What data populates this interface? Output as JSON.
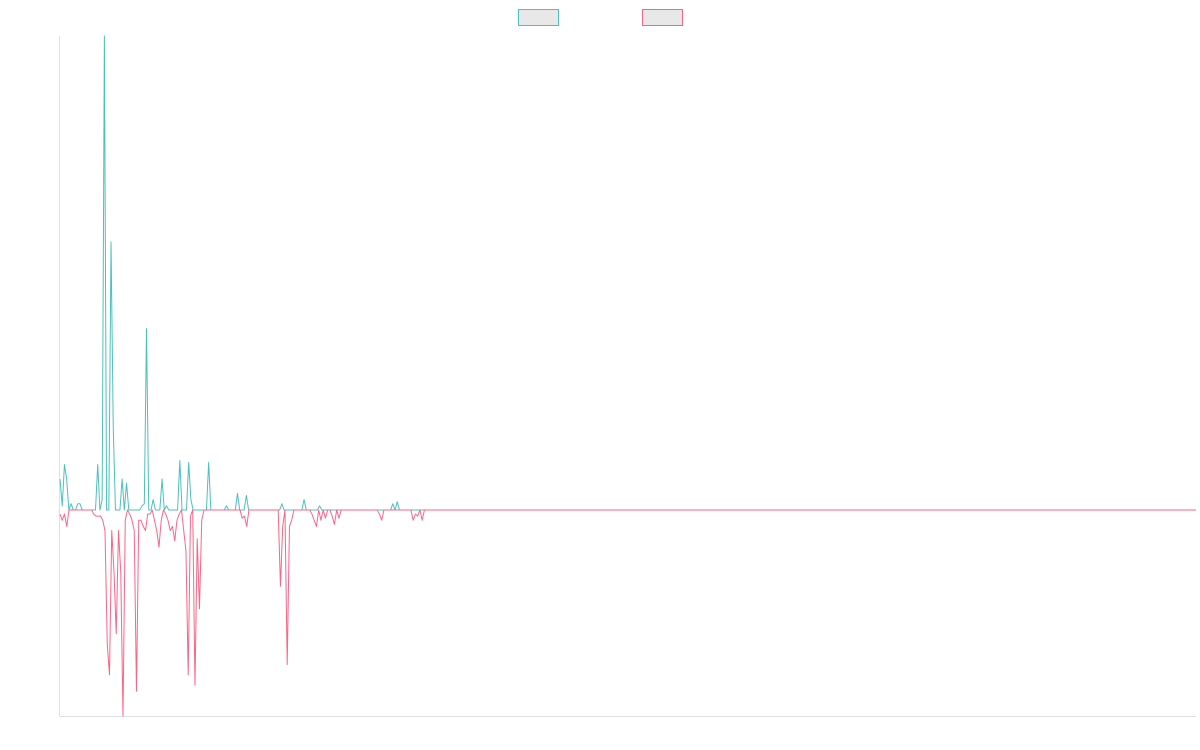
{
  "chart_data": {
    "type": "line",
    "title": "",
    "xlabel": "",
    "ylabel": "",
    "grid": false,
    "legend_position": "top-center",
    "ylim": [
      -100,
      230
    ],
    "series": [
      {
        "color": "#4bc0c0",
        "fill": "#e8e8e8",
        "values": [
          15,
          2,
          22,
          15,
          0,
          3,
          0,
          0,
          3,
          3,
          0,
          0,
          0,
          0,
          0,
          0,
          0,
          22,
          0,
          5,
          230,
          0,
          0,
          130,
          40,
          0,
          0,
          0,
          15,
          0,
          13,
          0,
          0,
          0,
          0,
          0,
          0,
          2,
          3,
          88,
          0,
          0,
          5,
          0,
          0,
          0,
          15,
          0,
          2,
          0,
          0,
          0,
          0,
          0,
          24,
          0,
          0,
          0,
          23,
          5,
          0,
          0,
          0,
          0,
          0,
          0,
          0,
          23,
          0,
          0,
          0,
          0,
          0,
          0,
          0,
          2,
          0,
          0,
          0,
          0,
          8,
          0,
          0,
          0,
          7,
          0,
          0,
          0,
          0,
          0,
          0,
          0,
          0,
          0,
          0,
          0,
          0,
          0,
          0,
          0,
          3,
          0,
          0,
          0,
          0,
          0,
          0,
          0,
          0,
          0,
          5,
          0,
          0,
          0,
          0,
          0,
          0,
          2,
          0,
          0,
          0,
          0,
          0,
          0,
          0,
          0,
          0,
          0,
          0,
          0,
          0,
          0,
          0,
          0,
          0,
          0,
          0,
          0,
          0,
          0,
          0,
          0,
          0,
          0,
          0,
          0,
          0,
          0,
          0,
          0,
          3,
          0,
          4,
          0,
          0,
          0,
          0,
          0,
          0,
          0,
          0,
          0,
          0,
          0,
          0,
          0,
          0,
          0,
          0,
          0,
          0,
          0,
          0,
          0,
          0,
          0,
          0,
          0,
          0,
          0,
          0,
          0,
          0,
          0,
          0,
          0,
          0,
          0,
          0,
          0,
          0,
          0,
          0,
          0,
          0,
          0,
          0,
          0,
          0,
          0,
          0,
          0,
          0,
          0,
          0,
          0,
          0,
          0,
          0,
          0,
          0,
          0,
          0,
          0,
          0,
          0,
          0,
          0,
          0,
          0,
          0,
          0,
          0,
          0,
          0,
          0,
          0,
          0,
          0,
          0,
          0,
          0,
          0,
          0,
          0,
          0,
          0,
          0,
          0,
          0,
          0,
          0,
          0,
          0,
          0,
          0,
          0,
          0,
          0,
          0,
          0,
          0,
          0,
          0,
          0,
          0,
          0,
          0,
          0,
          0,
          0,
          0,
          0,
          0,
          0,
          0,
          0,
          0,
          0,
          0,
          0,
          0,
          0,
          0,
          0,
          0,
          0,
          0,
          0,
          0,
          0,
          0,
          0,
          0,
          0,
          0,
          0,
          0,
          0,
          0,
          0,
          0,
          0,
          0,
          0,
          0,
          0,
          0,
          0,
          0,
          0,
          0,
          0,
          0,
          0,
          0,
          0,
          0,
          0,
          0,
          0,
          0,
          0,
          0,
          0,
          0,
          0,
          0,
          0,
          0,
          0,
          0,
          0,
          0,
          0,
          0,
          0,
          0,
          0,
          0,
          0,
          0,
          0,
          0,
          0,
          0,
          0,
          0,
          0,
          0,
          0,
          0,
          0,
          0,
          0,
          0,
          0,
          0,
          0,
          0,
          0,
          0,
          0,
          0,
          0,
          0,
          0,
          0,
          0,
          0,
          0,
          0,
          0,
          0,
          0,
          0,
          0,
          0,
          0,
          0,
          0,
          0,
          0,
          0,
          0,
          0,
          0,
          0,
          0,
          0,
          0,
          0,
          0,
          0,
          0,
          0,
          0,
          0,
          0,
          0,
          0,
          0,
          0,
          0,
          0,
          0,
          0,
          0,
          0,
          0,
          0,
          0,
          0,
          0,
          0,
          0,
          0,
          0,
          0,
          0,
          0,
          0,
          0,
          0,
          0,
          0,
          0,
          0,
          0,
          0,
          0,
          0,
          0,
          0,
          0,
          0,
          0,
          0,
          0,
          0,
          0,
          0,
          0,
          0,
          0,
          0,
          0,
          0,
          0,
          0,
          0,
          0,
          0,
          0,
          0,
          0,
          0,
          0,
          0,
          0,
          0,
          0,
          0,
          0,
          0,
          0,
          0,
          0,
          0,
          0,
          0,
          0,
          0,
          0,
          0,
          0,
          0,
          0,
          0,
          0,
          0,
          0,
          0,
          0,
          0,
          0,
          0,
          0,
          0,
          0,
          0,
          0,
          0,
          0,
          0,
          0,
          0,
          0,
          0,
          0,
          0,
          0,
          0,
          0,
          0,
          0,
          0,
          0,
          0,
          0,
          0,
          0,
          0,
          0,
          0,
          0,
          0,
          0,
          0,
          0,
          0,
          0,
          0
        ]
      },
      {
        "color": "#ff6384",
        "fill": "#e8e8e8",
        "values": [
          -2,
          -5,
          -2,
          -8,
          0,
          0,
          0,
          0,
          0,
          0,
          0,
          0,
          0,
          0,
          0,
          -2,
          -3,
          -3,
          -3,
          -5,
          -10,
          -65,
          -80,
          -10,
          -30,
          -60,
          -10,
          -30,
          -100,
          -5,
          0,
          -2,
          -5,
          -10,
          -88,
          -5,
          -5,
          -8,
          -10,
          -2,
          -2,
          0,
          -5,
          -10,
          -18,
          -5,
          0,
          -2,
          -5,
          -10,
          -8,
          -15,
          -5,
          -2,
          0,
          -10,
          -20,
          -80,
          -3,
          0,
          -85,
          -14,
          -48,
          -5,
          0,
          0,
          0,
          0,
          0,
          0,
          0,
          0,
          0,
          0,
          0,
          0,
          0,
          0,
          0,
          0,
          0,
          -4,
          -3,
          -8,
          0,
          0,
          0,
          0,
          0,
          0,
          0,
          0,
          0,
          0,
          0,
          0,
          0,
          0,
          -37,
          -8,
          0,
          -75,
          -8,
          -5,
          0,
          0,
          0,
          0,
          0,
          0,
          0,
          0,
          -2,
          -5,
          -8,
          0,
          -5,
          0,
          -4,
          0,
          0,
          -3,
          -7,
          0,
          -4,
          0,
          0,
          0,
          0,
          0,
          0,
          0,
          0,
          0,
          0,
          0,
          0,
          0,
          0,
          0,
          0,
          0,
          -2,
          -5,
          0,
          0,
          0,
          0,
          0,
          0,
          0,
          0,
          0,
          0,
          0,
          0,
          0,
          -5,
          -2,
          -3,
          0,
          -5,
          0,
          0,
          0,
          0,
          0,
          0,
          0,
          0,
          0,
          0,
          0,
          0,
          0,
          0,
          0,
          0,
          0,
          0,
          0,
          0,
          0,
          0,
          0,
          0,
          0,
          0,
          0,
          0,
          0,
          0,
          0,
          0,
          0,
          0,
          0,
          0,
          0,
          0,
          0,
          0,
          0,
          0,
          0,
          0,
          0,
          0,
          0,
          0,
          0,
          0,
          0,
          0,
          0,
          0,
          0,
          0,
          0,
          0,
          0,
          0,
          0,
          0,
          0,
          0,
          0,
          0,
          0,
          0,
          0,
          0,
          0,
          0,
          0,
          0,
          0,
          0,
          0,
          0,
          0,
          0,
          0,
          0,
          0,
          0,
          0,
          0,
          0,
          0,
          0,
          0,
          0,
          0,
          0,
          0,
          0,
          0,
          0,
          0,
          0,
          0,
          0,
          0,
          0,
          0,
          0,
          0,
          0,
          0,
          0,
          0,
          0,
          0,
          0,
          0,
          0,
          0,
          0,
          0,
          0,
          0,
          0,
          0,
          0,
          0,
          0,
          0,
          0,
          0,
          0,
          0,
          0,
          0,
          0,
          0,
          0,
          0,
          0,
          0,
          0,
          0,
          0,
          0,
          0,
          0,
          0,
          0,
          0,
          0,
          0,
          0,
          0,
          0,
          0,
          0,
          0,
          0,
          0,
          0,
          0,
          0,
          0,
          0,
          0,
          0,
          0,
          0,
          0,
          0,
          0,
          0,
          0,
          0,
          0,
          0,
          0,
          0,
          0,
          0,
          0,
          0,
          0,
          0,
          0,
          0,
          0,
          0,
          0,
          0,
          0,
          0,
          0,
          0,
          0,
          0,
          0,
          0,
          0,
          0,
          0,
          0,
          0,
          0,
          0,
          0,
          0,
          0,
          0,
          0,
          0,
          0,
          0,
          0,
          0,
          0,
          0,
          0,
          0,
          0,
          0,
          0,
          0,
          0,
          0,
          0,
          0,
          0,
          0,
          0,
          0,
          0,
          0,
          0,
          0,
          0,
          0,
          0,
          0,
          0,
          0,
          0,
          0,
          0,
          0,
          0,
          0,
          0,
          0,
          0,
          0,
          0,
          0,
          0,
          0,
          0,
          0,
          0,
          0,
          0,
          0,
          0,
          0,
          0,
          0,
          0,
          0,
          0,
          0,
          0,
          0,
          0,
          0,
          0,
          0,
          0,
          0,
          0,
          0,
          0,
          0,
          0,
          0,
          0,
          0,
          0,
          0,
          0,
          0,
          0,
          0,
          0,
          0,
          0,
          0,
          0,
          0,
          0,
          0,
          0,
          0,
          0,
          0,
          0,
          0,
          0,
          0,
          0,
          0,
          0,
          0,
          0,
          0,
          0,
          0,
          0,
          0,
          0,
          0,
          0,
          0,
          0,
          0,
          0,
          0,
          0,
          0,
          0,
          0,
          0,
          0,
          0,
          0,
          0,
          0,
          0,
          0,
          0,
          0,
          0,
          0,
          0,
          0,
          0,
          0,
          0
        ]
      }
    ]
  }
}
